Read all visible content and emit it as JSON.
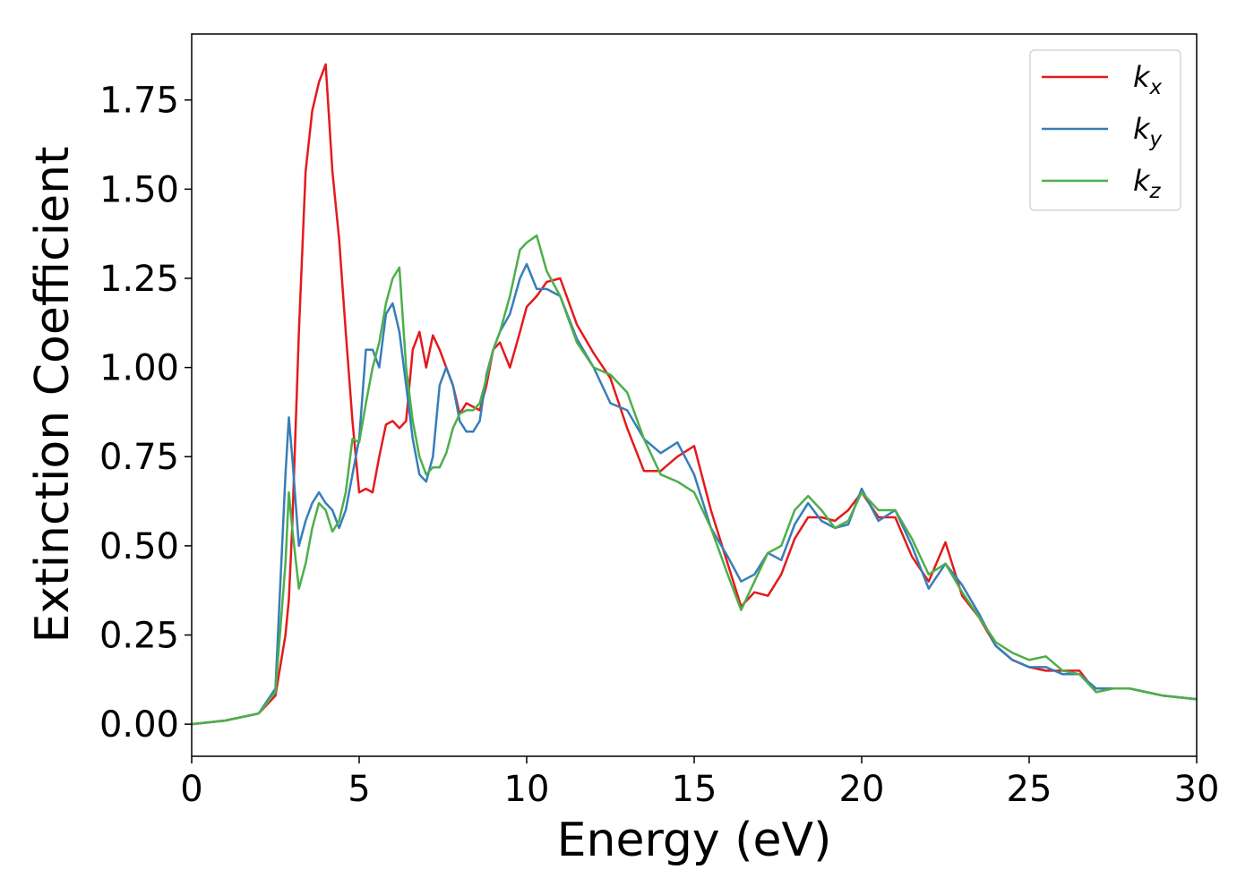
{
  "chart_data": {
    "type": "line",
    "xlabel": "Energy (eV)",
    "ylabel": "Extinction Coefficient",
    "xlim": [
      0,
      30
    ],
    "ylim": [
      -0.09,
      1.935
    ],
    "xticks": [
      0,
      5,
      10,
      15,
      20,
      25,
      30
    ],
    "yticks": [
      {
        "value": 0,
        "label": "0.00"
      },
      {
        "value": 0.25,
        "label": "0.25"
      },
      {
        "value": 0.5,
        "label": "0.50"
      },
      {
        "value": 0.75,
        "label": "0.75"
      },
      {
        "value": 1,
        "label": "1.00"
      },
      {
        "value": 1.25,
        "label": "1.25"
      },
      {
        "value": 1.5,
        "label": "1.50"
      },
      {
        "value": 1.75,
        "label": "1.75"
      }
    ],
    "legend": "upper right",
    "x": [
      0,
      1,
      2,
      2.5,
      2.8,
      2.9,
      3.0,
      3.2,
      3.4,
      3.6,
      3.8,
      4.0,
      4.2,
      4.4,
      4.6,
      4.8,
      5.0,
      5.2,
      5.4,
      5.6,
      5.8,
      6.0,
      6.2,
      6.4,
      6.6,
      6.8,
      7.0,
      7.2,
      7.4,
      7.6,
      7.8,
      8.0,
      8.2,
      8.4,
      8.6,
      8.8,
      9.0,
      9.2,
      9.5,
      9.8,
      10.0,
      10.3,
      10.6,
      11.0,
      11.5,
      12,
      12.5,
      13,
      13.5,
      14,
      14.5,
      15,
      15.5,
      16,
      16.4,
      16.8,
      17.2,
      17.6,
      18.0,
      18.4,
      18.8,
      19.2,
      19.6,
      20.0,
      20.5,
      21,
      21.5,
      22,
      22.5,
      23,
      23.5,
      24,
      24.5,
      25,
      25.5,
      26,
      26.5,
      27,
      27.5,
      28,
      29,
      30
    ],
    "series": [
      {
        "name": "kx",
        "color": "#e41a1c",
        "values": [
          0,
          0.01,
          0.03,
          0.08,
          0.25,
          0.35,
          0.55,
          1.1,
          1.55,
          1.72,
          1.8,
          1.85,
          1.55,
          1.36,
          1.1,
          0.85,
          0.65,
          0.66,
          0.65,
          0.75,
          0.84,
          0.85,
          0.83,
          0.85,
          1.05,
          1.1,
          1.0,
          1.09,
          1.05,
          1.0,
          0.95,
          0.87,
          0.9,
          0.89,
          0.88,
          0.95,
          1.05,
          1.07,
          1.0,
          1.1,
          1.17,
          1.2,
          1.24,
          1.25,
          1.12,
          1.04,
          0.97,
          0.83,
          0.71,
          0.71,
          0.75,
          0.78,
          0.6,
          0.45,
          0.33,
          0.37,
          0.36,
          0.42,
          0.52,
          0.58,
          0.58,
          0.57,
          0.6,
          0.65,
          0.58,
          0.58,
          0.47,
          0.4,
          0.51,
          0.36,
          0.3,
          0.22,
          0.18,
          0.16,
          0.15,
          0.15,
          0.15,
          0.09,
          0.1,
          0.1,
          0.08,
          0.07
        ]
      },
      {
        "name": "ky",
        "color": "#377eb8",
        "values": [
          0,
          0.01,
          0.03,
          0.1,
          0.7,
          0.86,
          0.75,
          0.5,
          0.57,
          0.62,
          0.65,
          0.62,
          0.6,
          0.55,
          0.6,
          0.7,
          0.8,
          1.05,
          1.05,
          1.0,
          1.15,
          1.18,
          1.1,
          0.95,
          0.8,
          0.7,
          0.68,
          0.75,
          0.95,
          1.0,
          0.95,
          0.85,
          0.82,
          0.82,
          0.85,
          0.98,
          1.05,
          1.1,
          1.15,
          1.25,
          1.29,
          1.22,
          1.22,
          1.2,
          1.08,
          1.0,
          0.9,
          0.88,
          0.8,
          0.76,
          0.79,
          0.7,
          0.55,
          0.47,
          0.4,
          0.42,
          0.48,
          0.46,
          0.56,
          0.62,
          0.57,
          0.55,
          0.56,
          0.66,
          0.57,
          0.6,
          0.5,
          0.38,
          0.45,
          0.39,
          0.31,
          0.22,
          0.18,
          0.16,
          0.16,
          0.14,
          0.14,
          0.1,
          0.1,
          0.1,
          0.08,
          0.07
        ]
      },
      {
        "name": "kz",
        "color": "#4daf4a",
        "values": [
          0,
          0.01,
          0.03,
          0.09,
          0.45,
          0.65,
          0.55,
          0.38,
          0.45,
          0.55,
          0.62,
          0.6,
          0.54,
          0.57,
          0.65,
          0.8,
          0.79,
          0.9,
          1.0,
          1.07,
          1.18,
          1.25,
          1.28,
          1.0,
          0.85,
          0.75,
          0.7,
          0.72,
          0.72,
          0.76,
          0.83,
          0.87,
          0.88,
          0.88,
          0.9,
          0.97,
          1.05,
          1.1,
          1.2,
          1.33,
          1.35,
          1.37,
          1.27,
          1.2,
          1.07,
          1.0,
          0.98,
          0.93,
          0.8,
          0.7,
          0.68,
          0.65,
          0.55,
          0.42,
          0.32,
          0.4,
          0.48,
          0.5,
          0.6,
          0.64,
          0.6,
          0.55,
          0.57,
          0.65,
          0.6,
          0.6,
          0.52,
          0.42,
          0.45,
          0.37,
          0.3,
          0.23,
          0.2,
          0.18,
          0.19,
          0.15,
          0.14,
          0.09,
          0.1,
          0.1,
          0.08,
          0.07
        ]
      }
    ]
  }
}
